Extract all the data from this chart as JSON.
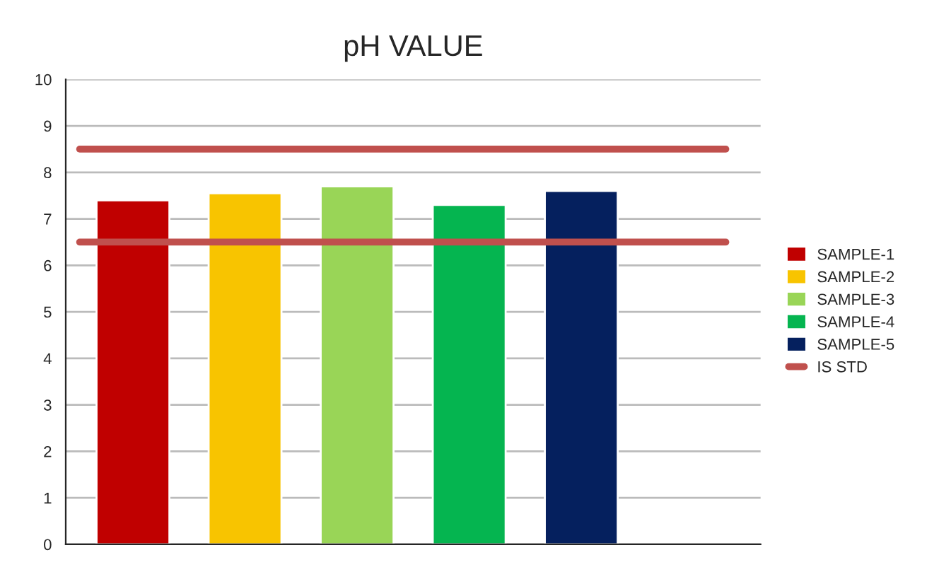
{
  "chart_data": {
    "type": "bar",
    "title": "pH VALUE",
    "categories": [
      null,
      null,
      null,
      null,
      null,
      null
    ],
    "series": [
      {
        "name": "SAMPLE-1",
        "color": "#c00000",
        "values": [
          7.4,
          null,
          null,
          null,
          null,
          null
        ]
      },
      {
        "name": "SAMPLE-2",
        "color": "#f8c400",
        "values": [
          null,
          7.55,
          null,
          null,
          null,
          null
        ]
      },
      {
        "name": "SAMPLE-3",
        "color": "#99d557",
        "values": [
          null,
          null,
          7.7,
          null,
          null,
          null
        ]
      },
      {
        "name": "SAMPLE-4",
        "color": "#05b550",
        "values": [
          null,
          null,
          null,
          7.3,
          null,
          null
        ]
      },
      {
        "name": "SAMPLE-5",
        "color": "#05205e",
        "values": [
          null,
          null,
          null,
          null,
          7.6,
          null
        ]
      }
    ],
    "ylim": [
      0,
      10
    ],
    "yticks": [
      0,
      1,
      2,
      3,
      4,
      5,
      6,
      7,
      8,
      9,
      10
    ],
    "ref_lines": [
      {
        "axis": "y",
        "value": 8.5,
        "label": "IS STD",
        "color": "#c0504d"
      },
      {
        "axis": "y",
        "value": 6.5,
        "color": "#c0504d"
      }
    ],
    "grid": "y",
    "legend": "right"
  }
}
